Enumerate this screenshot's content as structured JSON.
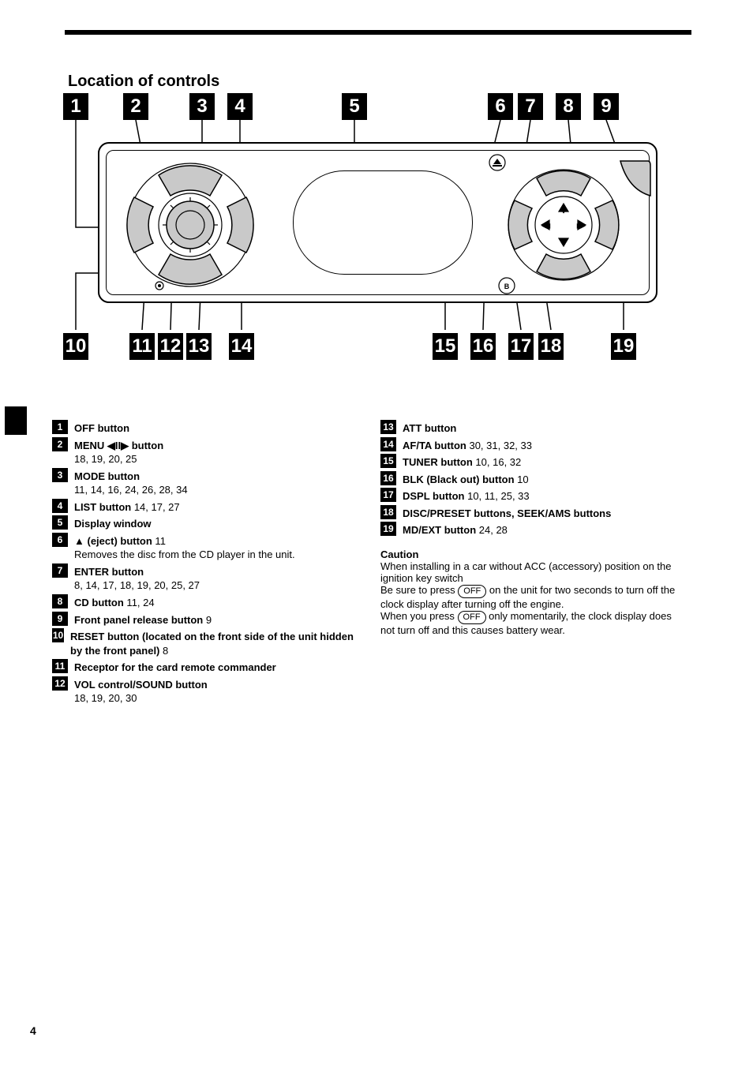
{
  "heading": "Location of controls",
  "page_number": "4",
  "off_pill": "OFF",
  "diagram": {
    "top_labels": {
      "n1": "1",
      "n2": "2",
      "n3": "3",
      "n4": "4",
      "n5": "5",
      "n6": "6",
      "n7": "7",
      "n8": "8",
      "n9": "9"
    },
    "bottom_labels": {
      "n10": "10",
      "n11": "11",
      "n12": "12",
      "n13": "13",
      "n14": "14",
      "n15": "15",
      "n16": "16",
      "n17": "17",
      "n18": "18",
      "n19": "19"
    }
  },
  "left_items": [
    {
      "n": "1",
      "text_html": "<b>OFF button</b>"
    },
    {
      "n": "2",
      "text_html": "<b>MENU <span class='sym'>◀II▶</span> button</b><br>18, 19, 20, 25"
    },
    {
      "n": "3",
      "text_html": "<b>MODE button</b><br>11, 14, 16, 24, 26, 28, 34"
    },
    {
      "n": "4",
      "text_html": "<b>LIST button</b> 14, 17, 27"
    },
    {
      "n": "5",
      "text_html": "<b>Display window</b>"
    },
    {
      "n": "6",
      "text_html": "<b><span class='sym'>▲</span> (eject) button</b> 11<br>Removes the disc from the CD player in the unit."
    },
    {
      "n": "7",
      "text_html": "<b>ENTER button</b><br>8, 14, 17, 18, 19, 20, 25, 27"
    },
    {
      "n": "8",
      "text_html": "<b>CD button</b> 11, 24"
    },
    {
      "n": "9",
      "text_html": "<b>Front panel release button</b> 9"
    },
    {
      "n": "10",
      "text_html": "<b>RESET button (located on the front side of the unit hidden by the front panel)</b> 8"
    },
    {
      "n": "11",
      "text_html": "<b>Receptor for the card remote commander</b>"
    },
    {
      "n": "12",
      "text_html": "<b>VOL control/SOUND button</b><br>18, 19, 20, 30"
    }
  ],
  "right_items": [
    {
      "n": "13",
      "text_html": "<b>ATT button</b>"
    },
    {
      "n": "14",
      "text_html": "<b>AF/TA button</b> 30, 31, 32, 33"
    },
    {
      "n": "15",
      "text_html": "<b>TUNER button</b> 10, 16, 32"
    },
    {
      "n": "16",
      "text_html": "<b>BLK (Black out) button</b> 10"
    },
    {
      "n": "17",
      "text_html": "<b>DSPL button</b> 10, 11, 25, 33"
    },
    {
      "n": "18",
      "text_html": "<b>DISC/PRESET buttons, SEEK/AMS buttons</b>"
    },
    {
      "n": "19",
      "text_html": "<b>MD/EXT button</b> 24, 28"
    }
  ],
  "note": {
    "title": "Caution",
    "body_html": "When installing in a car without ACC (accessory) position on the ignition key switch<br>Be sure to press <span class='pill'>OFF</span> on the unit for two seconds to turn off the clock display after turning off the engine.<br>When you press <span class='pill'>OFF</span> only momentarily, the clock display does not turn off and this causes battery wear."
  }
}
